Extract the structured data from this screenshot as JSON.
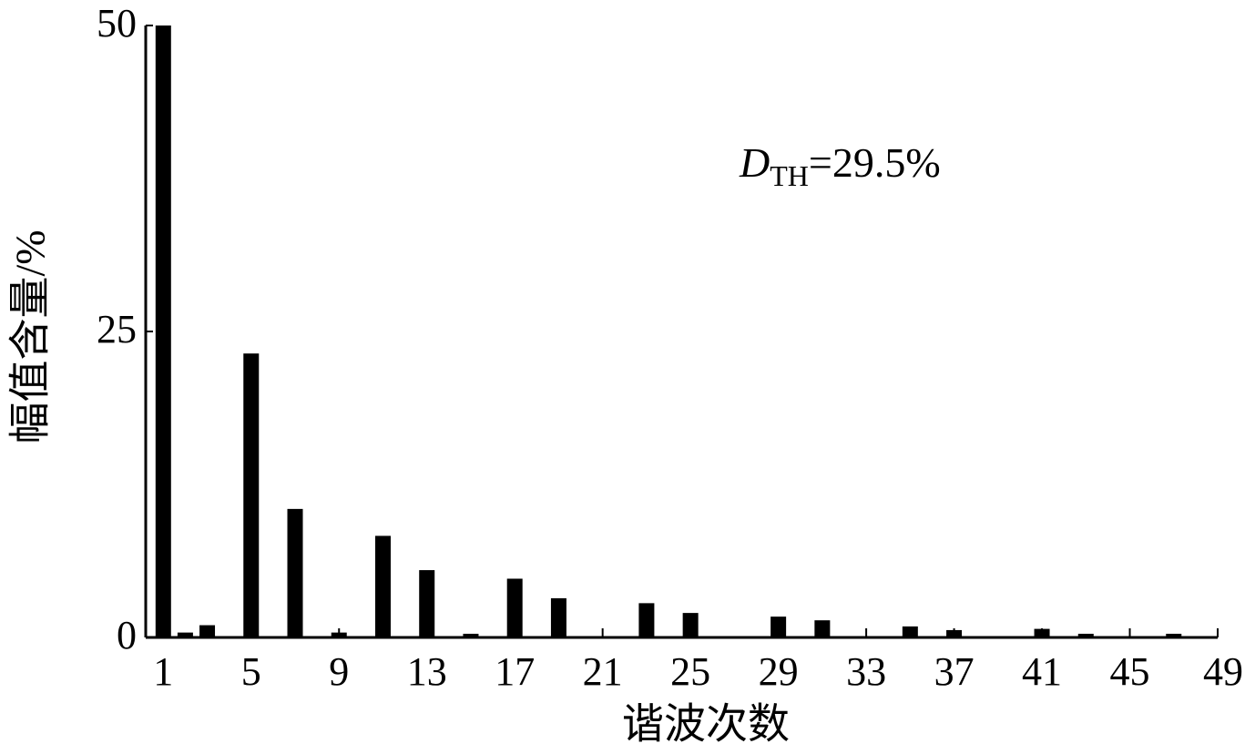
{
  "chart_data": {
    "type": "bar",
    "x_label": "谐波次数",
    "y_label": "幅值含量/%",
    "annotation": {
      "symbol": "D",
      "subscript": "TH",
      "text": "=29.5%"
    },
    "x": [
      1,
      2,
      3,
      5,
      7,
      9,
      11,
      13,
      15,
      17,
      19,
      23,
      25,
      29,
      31,
      35,
      37,
      41,
      43,
      47
    ],
    "values": [
      50,
      0.4,
      1.0,
      23.2,
      10.5,
      0.4,
      8.3,
      5.5,
      0.3,
      4.8,
      3.2,
      2.8,
      2.0,
      1.7,
      1.4,
      0.9,
      0.6,
      0.7,
      0.3,
      0.3
    ],
    "color": "#000000",
    "xlim": [
      0.2,
      49
    ],
    "xticks": [
      1,
      5,
      9,
      13,
      17,
      21,
      25,
      29,
      33,
      37,
      41,
      45,
      49
    ],
    "ylim": [
      0,
      50
    ],
    "yticks": [
      0,
      25,
      50
    ],
    "grid": false
  }
}
